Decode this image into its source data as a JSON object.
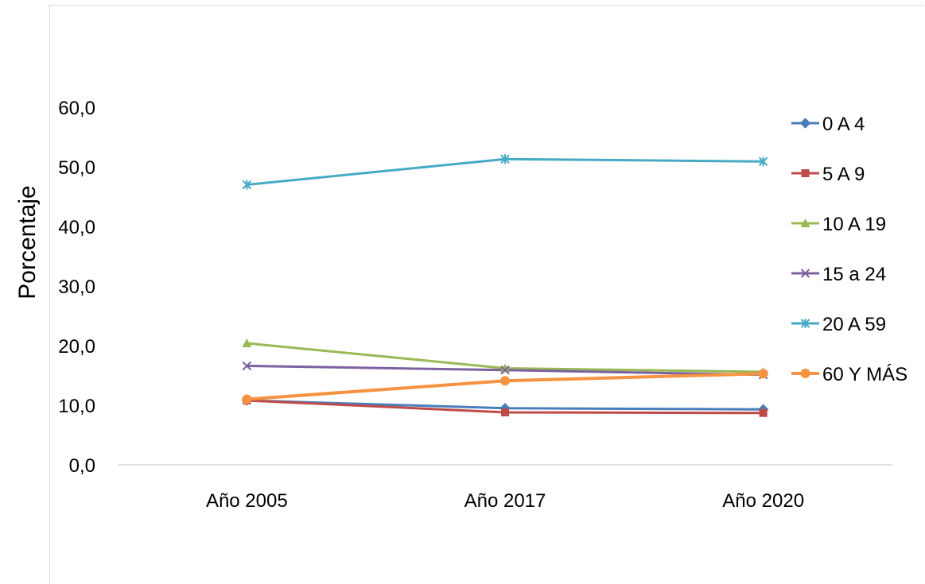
{
  "chart_data": {
    "type": "line",
    "title": "",
    "xlabel": "",
    "ylabel": "Porcentaje",
    "categories": [
      "Año 2005",
      "Año 2017",
      "Año 2020"
    ],
    "ylim": [
      0,
      60
    ],
    "y_ticks": [
      "0,0",
      "10,0",
      "20,0",
      "30,0",
      "40,0",
      "50,0",
      "60,0"
    ],
    "legend_position": "right",
    "grid": false,
    "series": [
      {
        "name": "0 A 4",
        "values": [
          10.8,
          9.5,
          9.3
        ],
        "color": "#4a7ebb",
        "marker": "diamond",
        "width": 3
      },
      {
        "name": "5 A 9",
        "values": [
          10.8,
          8.8,
          8.7
        ],
        "color": "#be4b48",
        "marker": "square",
        "width": 3
      },
      {
        "name": "10 A 19",
        "values": [
          20.4,
          16.2,
          15.6
        ],
        "color": "#98b954",
        "marker": "triangle",
        "width": 3
      },
      {
        "name": "15 a 24",
        "values": [
          16.6,
          15.9,
          15.1
        ],
        "color": "#7d60a0",
        "marker": "x",
        "width": 3
      },
      {
        "name": "20 A 59",
        "values": [
          47.0,
          51.3,
          50.9
        ],
        "color": "#46aac5",
        "marker": "star",
        "width": 3
      },
      {
        "name": "60 Y MÁS",
        "values": [
          11.0,
          14.1,
          15.3
        ],
        "color": "#f69240",
        "marker": "circle",
        "width": 4
      }
    ]
  }
}
